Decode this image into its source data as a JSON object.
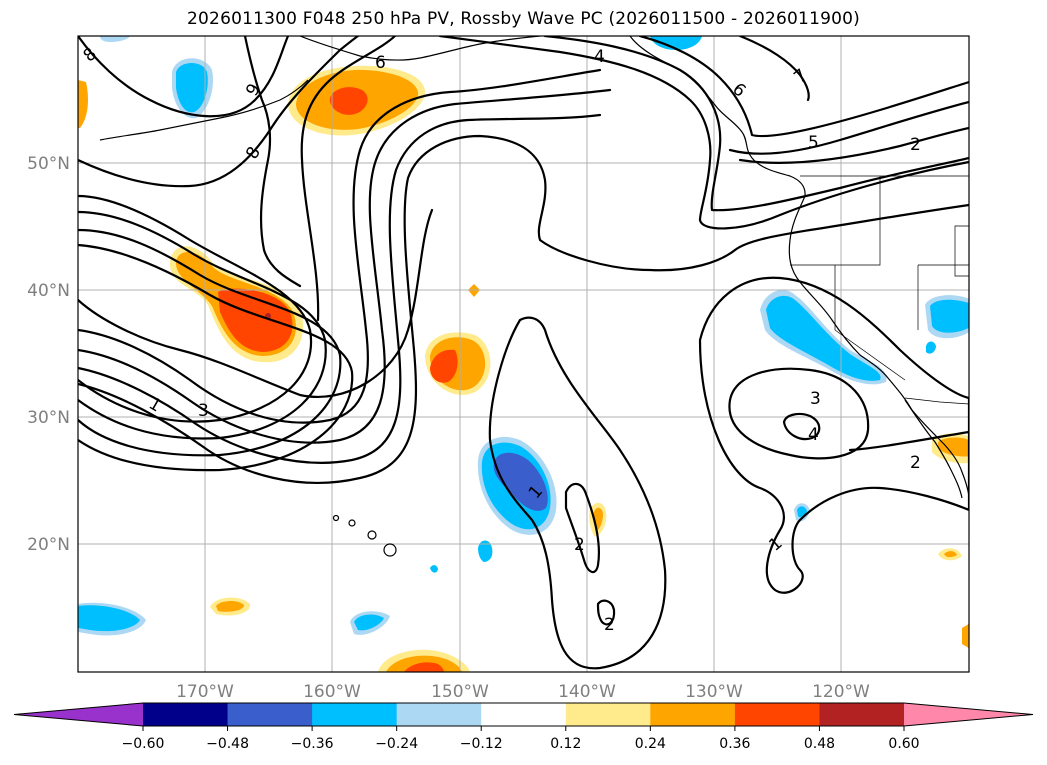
{
  "title": "2026011300 F048 250 hPa PV, Rossby Wave PC (2026011500 - 2026011900)",
  "map": {
    "lon_labels": [
      "170°W",
      "160°W",
      "150°W",
      "140°W",
      "130°W",
      "120°W"
    ],
    "lat_labels": [
      "50°N",
      "40°N",
      "30°N",
      "20°N"
    ],
    "contour_labels": [
      "8",
      "9",
      "8",
      "6",
      "4",
      "7",
      "6",
      "5",
      "2",
      "1",
      "3",
      "3",
      "4",
      "2",
      "1",
      "2",
      "1",
      "2"
    ]
  },
  "colorbar": {
    "ticks": [
      "−0.60",
      "−0.48",
      "−0.36",
      "−0.24",
      "−0.12",
      "0.12",
      "0.24",
      "0.36",
      "0.48",
      "0.60"
    ],
    "colors": [
      "#9932cc",
      "#00008b",
      "#3a5fcd",
      "#00bfff",
      "#add8f4",
      "#ffffff",
      "#ffeb8c",
      "#ffa500",
      "#ff4500",
      "#b22222",
      "#ff88aa"
    ]
  }
}
